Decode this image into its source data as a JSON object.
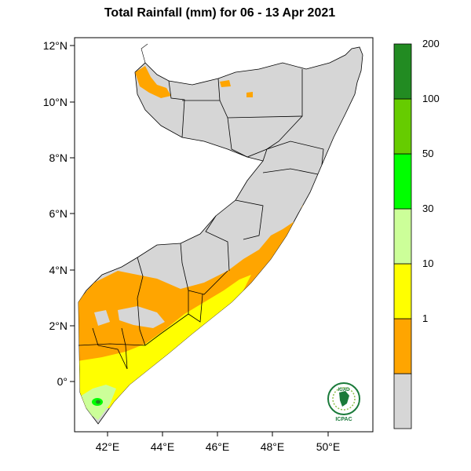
{
  "map": {
    "title": "Total Rainfall (mm) for 06 - 13 Apr 2021",
    "lat_ticks": [
      "12°N",
      "10°N",
      "8°N",
      "6°N",
      "4°N",
      "2°N",
      "0°"
    ],
    "lon_ticks": [
      "42°E",
      "44°E",
      "46°E",
      "48°E",
      "50°E"
    ],
    "logo": {
      "top_text": "IGAD",
      "bottom_text": "ICPAC"
    }
  },
  "legend": {
    "bins": [
      {
        "label": "",
        "color": "#d6d6d6"
      },
      {
        "label": "1",
        "color": "#ffa500"
      },
      {
        "label": "10",
        "color": "#ffff00"
      },
      {
        "label": "30",
        "color": "#ccff99"
      },
      {
        "label": "50",
        "color": "#00ff00"
      },
      {
        "label": "100",
        "color": "#66cc00"
      },
      {
        "label": "200",
        "color": "#228b22"
      }
    ]
  }
}
